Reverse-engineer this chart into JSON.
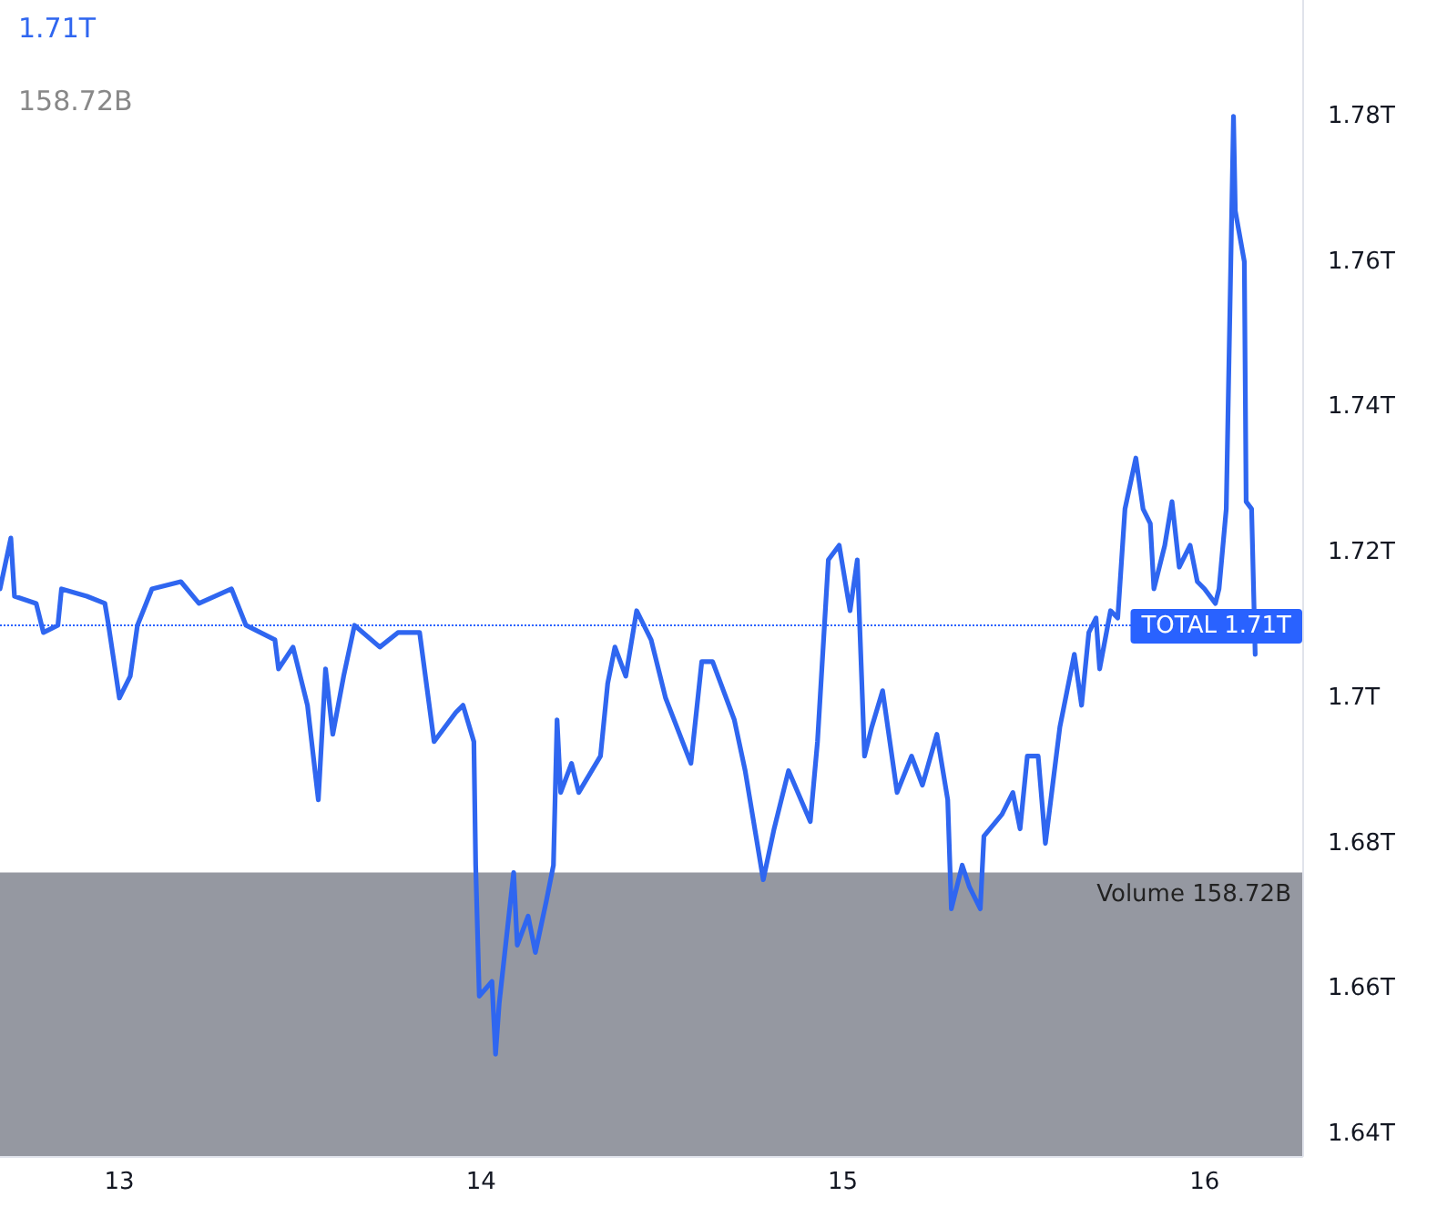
{
  "chart_data": {
    "type": "line",
    "annotations": [
      "1.71T",
      "158.72B"
    ],
    "x": [
      12.67,
      12.7,
      12.71,
      12.77,
      12.79,
      12.83,
      12.84,
      12.91,
      12.96,
      12.97,
      13.0,
      13.03,
      13.05,
      13.09,
      13.17,
      13.22,
      13.31,
      13.35,
      13.43,
      13.44,
      13.48,
      13.52,
      13.55,
      13.57,
      13.59,
      13.62,
      13.65,
      13.72,
      13.77,
      13.83,
      13.87,
      13.93,
      13.95,
      13.98,
      13.985,
      13.995,
      14.03,
      14.04,
      14.05,
      14.09,
      14.1,
      14.13,
      14.15,
      14.18,
      14.2,
      14.21,
      14.22,
      14.25,
      14.27,
      14.33,
      14.35,
      14.37,
      14.4,
      14.43,
      14.47,
      14.51,
      14.58,
      14.61,
      14.64,
      14.7,
      14.73,
      14.75,
      14.78,
      14.81,
      14.85,
      14.91,
      14.93,
      14.96,
      14.99,
      15.02,
      15.04,
      15.06,
      15.08,
      15.11,
      15.15,
      15.19,
      15.22,
      15.26,
      15.29,
      15.3,
      15.33,
      15.35,
      15.38,
      15.39,
      15.44,
      15.47,
      15.49,
      15.51,
      15.54,
      15.56,
      15.58,
      15.6,
      15.62,
      15.64,
      15.66,
      15.68,
      15.7,
      15.71,
      15.74,
      15.76,
      15.78,
      15.81,
      15.83,
      15.85,
      15.86,
      15.89,
      15.91,
      15.93,
      15.96,
      15.98,
      16.0,
      16.03,
      16.04,
      16.06,
      16.08,
      16.085,
      16.11,
      16.115,
      16.13,
      16.14
    ],
    "series": [
      {
        "color": "#2f66f0",
        "values": [
          1.715,
          1.722,
          1.714,
          1.713,
          1.709,
          1.71,
          1.715,
          1.714,
          1.713,
          1.71,
          1.7,
          1.703,
          1.71,
          1.715,
          1.716,
          1.713,
          1.715,
          1.71,
          1.708,
          1.704,
          1.707,
          1.699,
          1.686,
          1.704,
          1.695,
          1.703,
          1.71,
          1.707,
          1.709,
          1.709,
          1.694,
          1.698,
          1.699,
          1.694,
          1.677,
          1.659,
          1.661,
          1.651,
          1.658,
          1.676,
          1.666,
          1.67,
          1.665,
          1.672,
          1.677,
          1.697,
          1.687,
          1.691,
          1.687,
          1.692,
          1.702,
          1.707,
          1.703,
          1.712,
          1.708,
          1.7,
          1.691,
          1.705,
          1.705,
          1.697,
          1.69,
          1.684,
          1.675,
          1.682,
          1.69,
          1.683,
          1.694,
          1.719,
          1.721,
          1.712,
          1.719,
          1.692,
          1.696,
          1.701,
          1.687,
          1.692,
          1.688,
          1.695,
          1.686,
          1.671,
          1.677,
          1.674,
          1.671,
          1.681,
          1.684,
          1.687,
          1.682,
          1.692,
          1.692,
          1.68,
          1.688,
          1.696,
          1.701,
          1.706,
          1.699,
          1.709,
          1.711,
          1.704,
          1.712,
          1.711,
          1.726,
          1.733,
          1.726,
          1.724,
          1.715,
          1.721,
          1.727,
          1.718,
          1.721,
          1.716,
          1.715,
          1.713,
          1.715,
          1.726,
          1.78,
          1.767,
          1.76,
          1.727,
          1.726,
          1.706
        ]
      }
    ],
    "xlim": [
      12.67,
      16.27
    ],
    "xticks": [
      13,
      14,
      15,
      16
    ],
    "ylim": [
      1.637,
      1.796
    ],
    "yticks": [
      {
        "value": 1.64,
        "label": "1.64T"
      },
      {
        "value": 1.66,
        "label": "1.66T"
      },
      {
        "value": 1.68,
        "label": "1.68T"
      },
      {
        "value": 1.7,
        "label": "1.7T"
      },
      {
        "value": 1.72,
        "label": "1.72T"
      },
      {
        "value": 1.74,
        "label": "1.74T"
      },
      {
        "value": 1.76,
        "label": "1.76T"
      },
      {
        "value": 1.78,
        "label": "1.78T"
      }
    ],
    "ref_lines": [
      {
        "axis": "y",
        "value": 1.71,
        "label": "TOTAL 1.71T",
        "color": "#2962ff",
        "line_style": "dotted"
      }
    ],
    "bands": [
      {
        "axis": "y",
        "from": 1.637,
        "to": 1.676,
        "label": "Volume 158.72B",
        "color": "#9598a1"
      }
    ],
    "grid": false,
    "marker": "none",
    "line_style": "solid"
  }
}
